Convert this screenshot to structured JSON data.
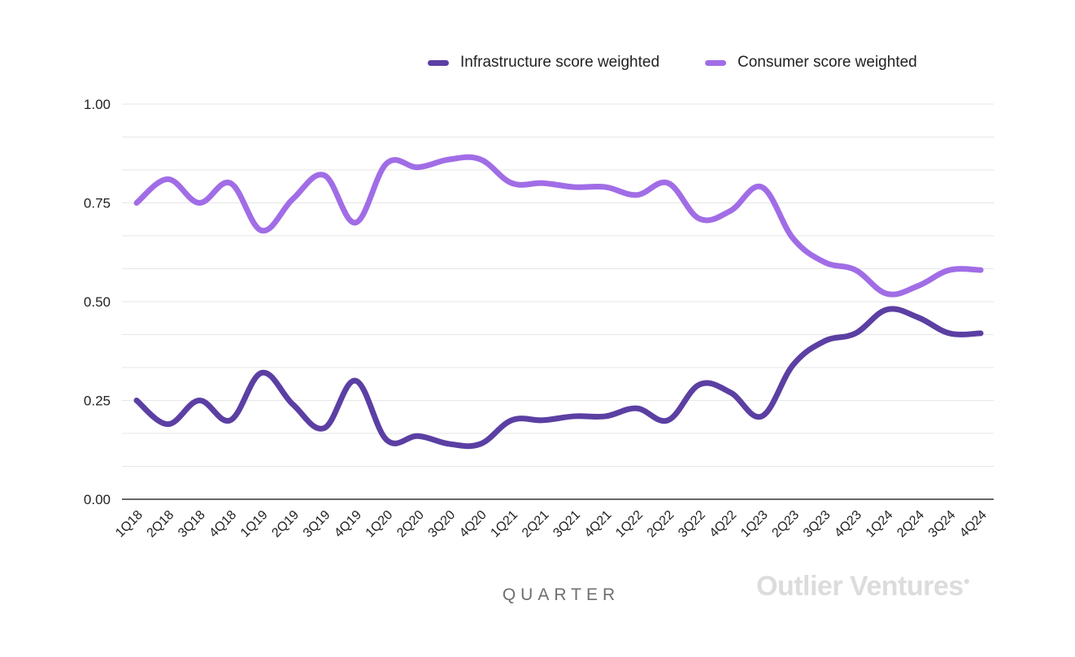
{
  "chart_data": {
    "type": "line",
    "xlabel": "QUARTER",
    "ylabel": "",
    "ylim": [
      0,
      1
    ],
    "yticks": [
      "0.00",
      "0.25",
      "0.50",
      "0.75",
      "1.00"
    ],
    "grid": true,
    "legend_position": "top-right",
    "categories": [
      "1Q18",
      "2Q18",
      "3Q18",
      "4Q18",
      "1Q19",
      "2Q19",
      "3Q19",
      "4Q19",
      "1Q20",
      "2Q20",
      "3Q20",
      "4Q20",
      "1Q21",
      "2Q21",
      "3Q21",
      "4Q21",
      "1Q22",
      "2Q22",
      "3Q22",
      "4Q22",
      "1Q23",
      "2Q23",
      "3Q23",
      "4Q23",
      "1Q24",
      "2Q24",
      "3Q24",
      "4Q24"
    ],
    "series": [
      {
        "name": "Infrastructure score weighted",
        "color": "#5b3fa3",
        "values": [
          0.25,
          0.19,
          0.25,
          0.2,
          0.32,
          0.24,
          0.18,
          0.3,
          0.15,
          0.16,
          0.14,
          0.14,
          0.2,
          0.2,
          0.21,
          0.21,
          0.23,
          0.2,
          0.29,
          0.27,
          0.21,
          0.34,
          0.4,
          0.42,
          0.48,
          0.46,
          0.42,
          0.42
        ]
      },
      {
        "name": "Consumer score weighted",
        "color": "#a16de6",
        "values": [
          0.75,
          0.81,
          0.75,
          0.8,
          0.68,
          0.76,
          0.82,
          0.7,
          0.85,
          0.84,
          0.86,
          0.86,
          0.8,
          0.8,
          0.79,
          0.79,
          0.77,
          0.8,
          0.71,
          0.73,
          0.79,
          0.66,
          0.6,
          0.58,
          0.52,
          0.54,
          0.58,
          0.58
        ]
      }
    ]
  },
  "watermark": "Outlier Ventures"
}
